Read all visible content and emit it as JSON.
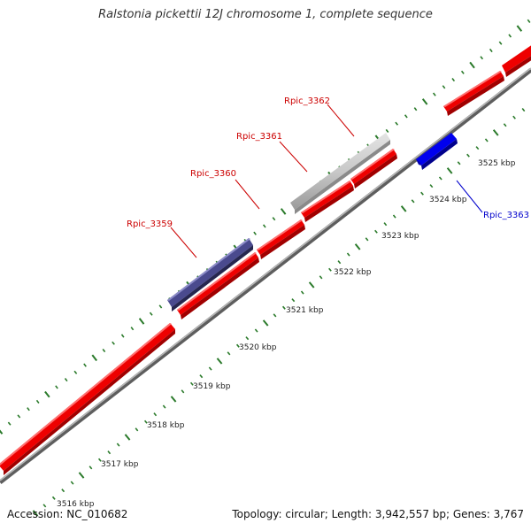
{
  "title": "Ralstonia pickettii 12J chromosome 1, complete sequence",
  "footer": {
    "accession": "Accession: NC_010682",
    "summary": "Topology: circular; Length: 3,942,557 bp; Genes: 3,767"
  },
  "colors": {
    "forward_gene": "#ff0000",
    "reverse_gene": "#0000ff",
    "highlight_gene": "#4a4a8e",
    "pseudo_gene": "#c0c0c0",
    "backbone": "#8c8c8c",
    "tick": "#2a7a2a",
    "label_forward": "#cc0000",
    "label_reverse": "#0000cc"
  },
  "scale_labels": [
    "3516 kbp",
    "3517 kbp",
    "3518 kbp",
    "3519 kbp",
    "3520 kbp",
    "3521 kbp",
    "3522 kbp",
    "3523 kbp",
    "3524 kbp",
    "3525 kbp"
  ],
  "gene_labels": [
    {
      "name": "Rpic_3359",
      "strand": "forward"
    },
    {
      "name": "Rpic_3360",
      "strand": "forward"
    },
    {
      "name": "Rpic_3361",
      "strand": "forward"
    },
    {
      "name": "Rpic_3362",
      "strand": "forward"
    },
    {
      "name": "Rpic_3363",
      "strand": "reverse"
    }
  ]
}
